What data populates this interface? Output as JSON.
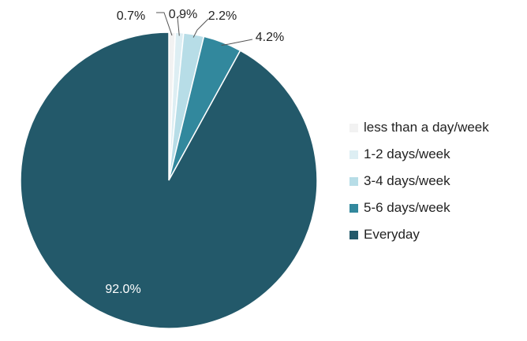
{
  "chart_data": {
    "type": "pie",
    "title": "",
    "slices": [
      {
        "label": "less than a day/week",
        "value": 0.7,
        "display": "0.7%",
        "color": "#f2f2f2"
      },
      {
        "label": "1-2 days/week",
        "value": 0.9,
        "display": "0.9%",
        "color": "#ddeef3"
      },
      {
        "label": "3-4 days/week",
        "value": 2.2,
        "display": "2.2%",
        "color": "#b7dde7"
      },
      {
        "label": "5-6 days/week",
        "value": 4.2,
        "display": "4.2%",
        "color": "#32889d"
      },
      {
        "label": "Everyday",
        "value": 92.0,
        "display": "92.0%",
        "color": "#23596a"
      }
    ],
    "legend_position": "right",
    "start_angle": "12 o'clock",
    "direction": "clockwise"
  }
}
